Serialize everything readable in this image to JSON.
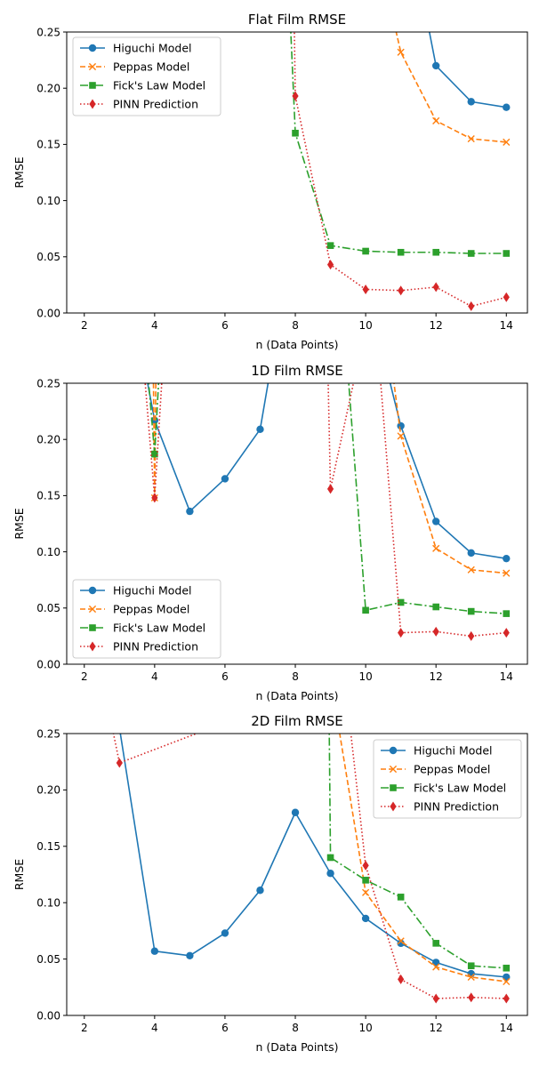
{
  "chart_data": [
    {
      "type": "line",
      "title": "Flat Film RMSE",
      "xlabel": "n (Data Points)",
      "ylabel": "RMSE",
      "xlim": [
        1.5,
        14.6
      ],
      "ylim": [
        0.0,
        0.25
      ],
      "xticks": [
        "2",
        "4",
        "6",
        "8",
        "10",
        "12",
        "14"
      ],
      "yticks": [
        "0.00",
        "0.05",
        "0.10",
        "0.15",
        "0.20",
        "0.25"
      ],
      "grid": false,
      "legend_position": "upper-left",
      "series": [
        {
          "name": "Higuchi Model",
          "x": [
            11.5,
            12,
            13,
            14
          ],
          "y": [
            0.3,
            0.22,
            0.188,
            0.183
          ]
        },
        {
          "name": "Peppas Model",
          "x": [
            10.5,
            11,
            12,
            13,
            14
          ],
          "y": [
            0.3,
            0.232,
            0.171,
            0.155,
            0.152
          ]
        },
        {
          "name": "Fick's Law Model",
          "x": [
            7.8,
            8,
            9,
            10,
            11,
            12,
            13,
            14
          ],
          "y": [
            0.3,
            0.16,
            0.06,
            0.055,
            0.054,
            0.054,
            0.053,
            0.053
          ]
        },
        {
          "name": "PINN Prediction",
          "x": [
            7.95,
            8,
            9,
            10,
            11,
            12,
            13,
            14
          ],
          "y": [
            0.3,
            0.193,
            0.043,
            0.021,
            0.02,
            0.023,
            0.006,
            0.014
          ]
        }
      ]
    },
    {
      "type": "line",
      "title": "1D Film RMSE",
      "xlabel": "n (Data Points)",
      "ylabel": "RMSE",
      "xlim": [
        1.5,
        14.6
      ],
      "ylim": [
        0.0,
        0.25
      ],
      "xticks": [
        "2",
        "4",
        "6",
        "8",
        "10",
        "12",
        "14"
      ],
      "yticks": [
        "0.00",
        "0.05",
        "0.10",
        "0.15",
        "0.20",
        "0.25"
      ],
      "grid": false,
      "legend_position": "lower-left",
      "series": [
        {
          "name": "Higuchi Model",
          "x": [
            3.5,
            4,
            5,
            6,
            7,
            7.5,
            10.3,
            11,
            12,
            13,
            14
          ],
          "y": [
            0.3,
            0.217,
            0.136,
            0.165,
            0.209,
            0.3,
            0.3,
            0.212,
            0.127,
            0.099,
            0.094
          ]
        },
        {
          "name": "Peppas Model",
          "x": [
            3.95,
            4,
            4.05,
            10.6,
            11,
            12,
            13,
            14
          ],
          "y": [
            0.3,
            0.148,
            0.3,
            0.3,
            0.203,
            0.103,
            0.084,
            0.081
          ]
        },
        {
          "name": "Fick's Law Model",
          "x": [
            3.7,
            4,
            4.2,
            9.4,
            10,
            11,
            12,
            13,
            14
          ],
          "y": [
            0.3,
            0.187,
            0.3,
            0.3,
            0.048,
            0.055,
            0.051,
            0.047,
            0.045
          ]
        },
        {
          "name": "PINN Prediction",
          "x": [
            3.6,
            4,
            4.3,
            8.9,
            9,
            10,
            10.3,
            11,
            12,
            13,
            14
          ],
          "y": [
            0.3,
            0.148,
            0.3,
            0.3,
            0.156,
            0.3,
            0.3,
            0.028,
            0.029,
            0.025,
            0.028
          ]
        }
      ]
    },
    {
      "type": "line",
      "title": "2D Film RMSE",
      "xlabel": "n (Data Points)",
      "ylabel": "RMSE",
      "xlim": [
        1.5,
        14.6
      ],
      "ylim": [
        0.0,
        0.25
      ],
      "xticks": [
        "2",
        "4",
        "6",
        "8",
        "10",
        "12",
        "14"
      ],
      "yticks": [
        "0.00",
        "0.05",
        "0.10",
        "0.15",
        "0.20",
        "0.25"
      ],
      "grid": false,
      "legend_position": "upper-right",
      "series": [
        {
          "name": "Higuchi Model",
          "x": [
            2.9,
            3,
            4,
            5,
            6,
            7,
            8,
            9,
            10,
            11,
            12,
            13,
            14
          ],
          "y": [
            0.3,
            0.255,
            0.057,
            0.053,
            0.073,
            0.111,
            0.18,
            0.126,
            0.086,
            0.064,
            0.047,
            0.037,
            0.034
          ]
        },
        {
          "name": "Peppas Model",
          "x": [
            9.0,
            10,
            11,
            12,
            13,
            14
          ],
          "y": [
            0.3,
            0.109,
            0.066,
            0.043,
            0.034,
            0.03
          ]
        },
        {
          "name": "Fick's Law Model",
          "x": [
            8.95,
            9,
            10,
            11,
            12,
            13,
            14
          ],
          "y": [
            0.3,
            0.14,
            0.12,
            0.105,
            0.064,
            0.044,
            0.042
          ]
        },
        {
          "name": "PINN Prediction",
          "x": [
            2.5,
            3,
            9.4,
            10,
            11,
            12,
            13,
            14
          ],
          "y": [
            0.3,
            0.224,
            0.3,
            0.133,
            0.032,
            0.015,
            0.016,
            0.015
          ]
        }
      ]
    }
  ],
  "series_styles": [
    {
      "color": "#1f77b4",
      "dash": "",
      "marker": "circle"
    },
    {
      "color": "#ff7f0e",
      "dash": "6,3",
      "marker": "x"
    },
    {
      "color": "#2ca02c",
      "dash": "9,3,2,3",
      "marker": "square"
    },
    {
      "color": "#d62728",
      "dash": "1.5,2.5",
      "marker": "diamond"
    }
  ]
}
